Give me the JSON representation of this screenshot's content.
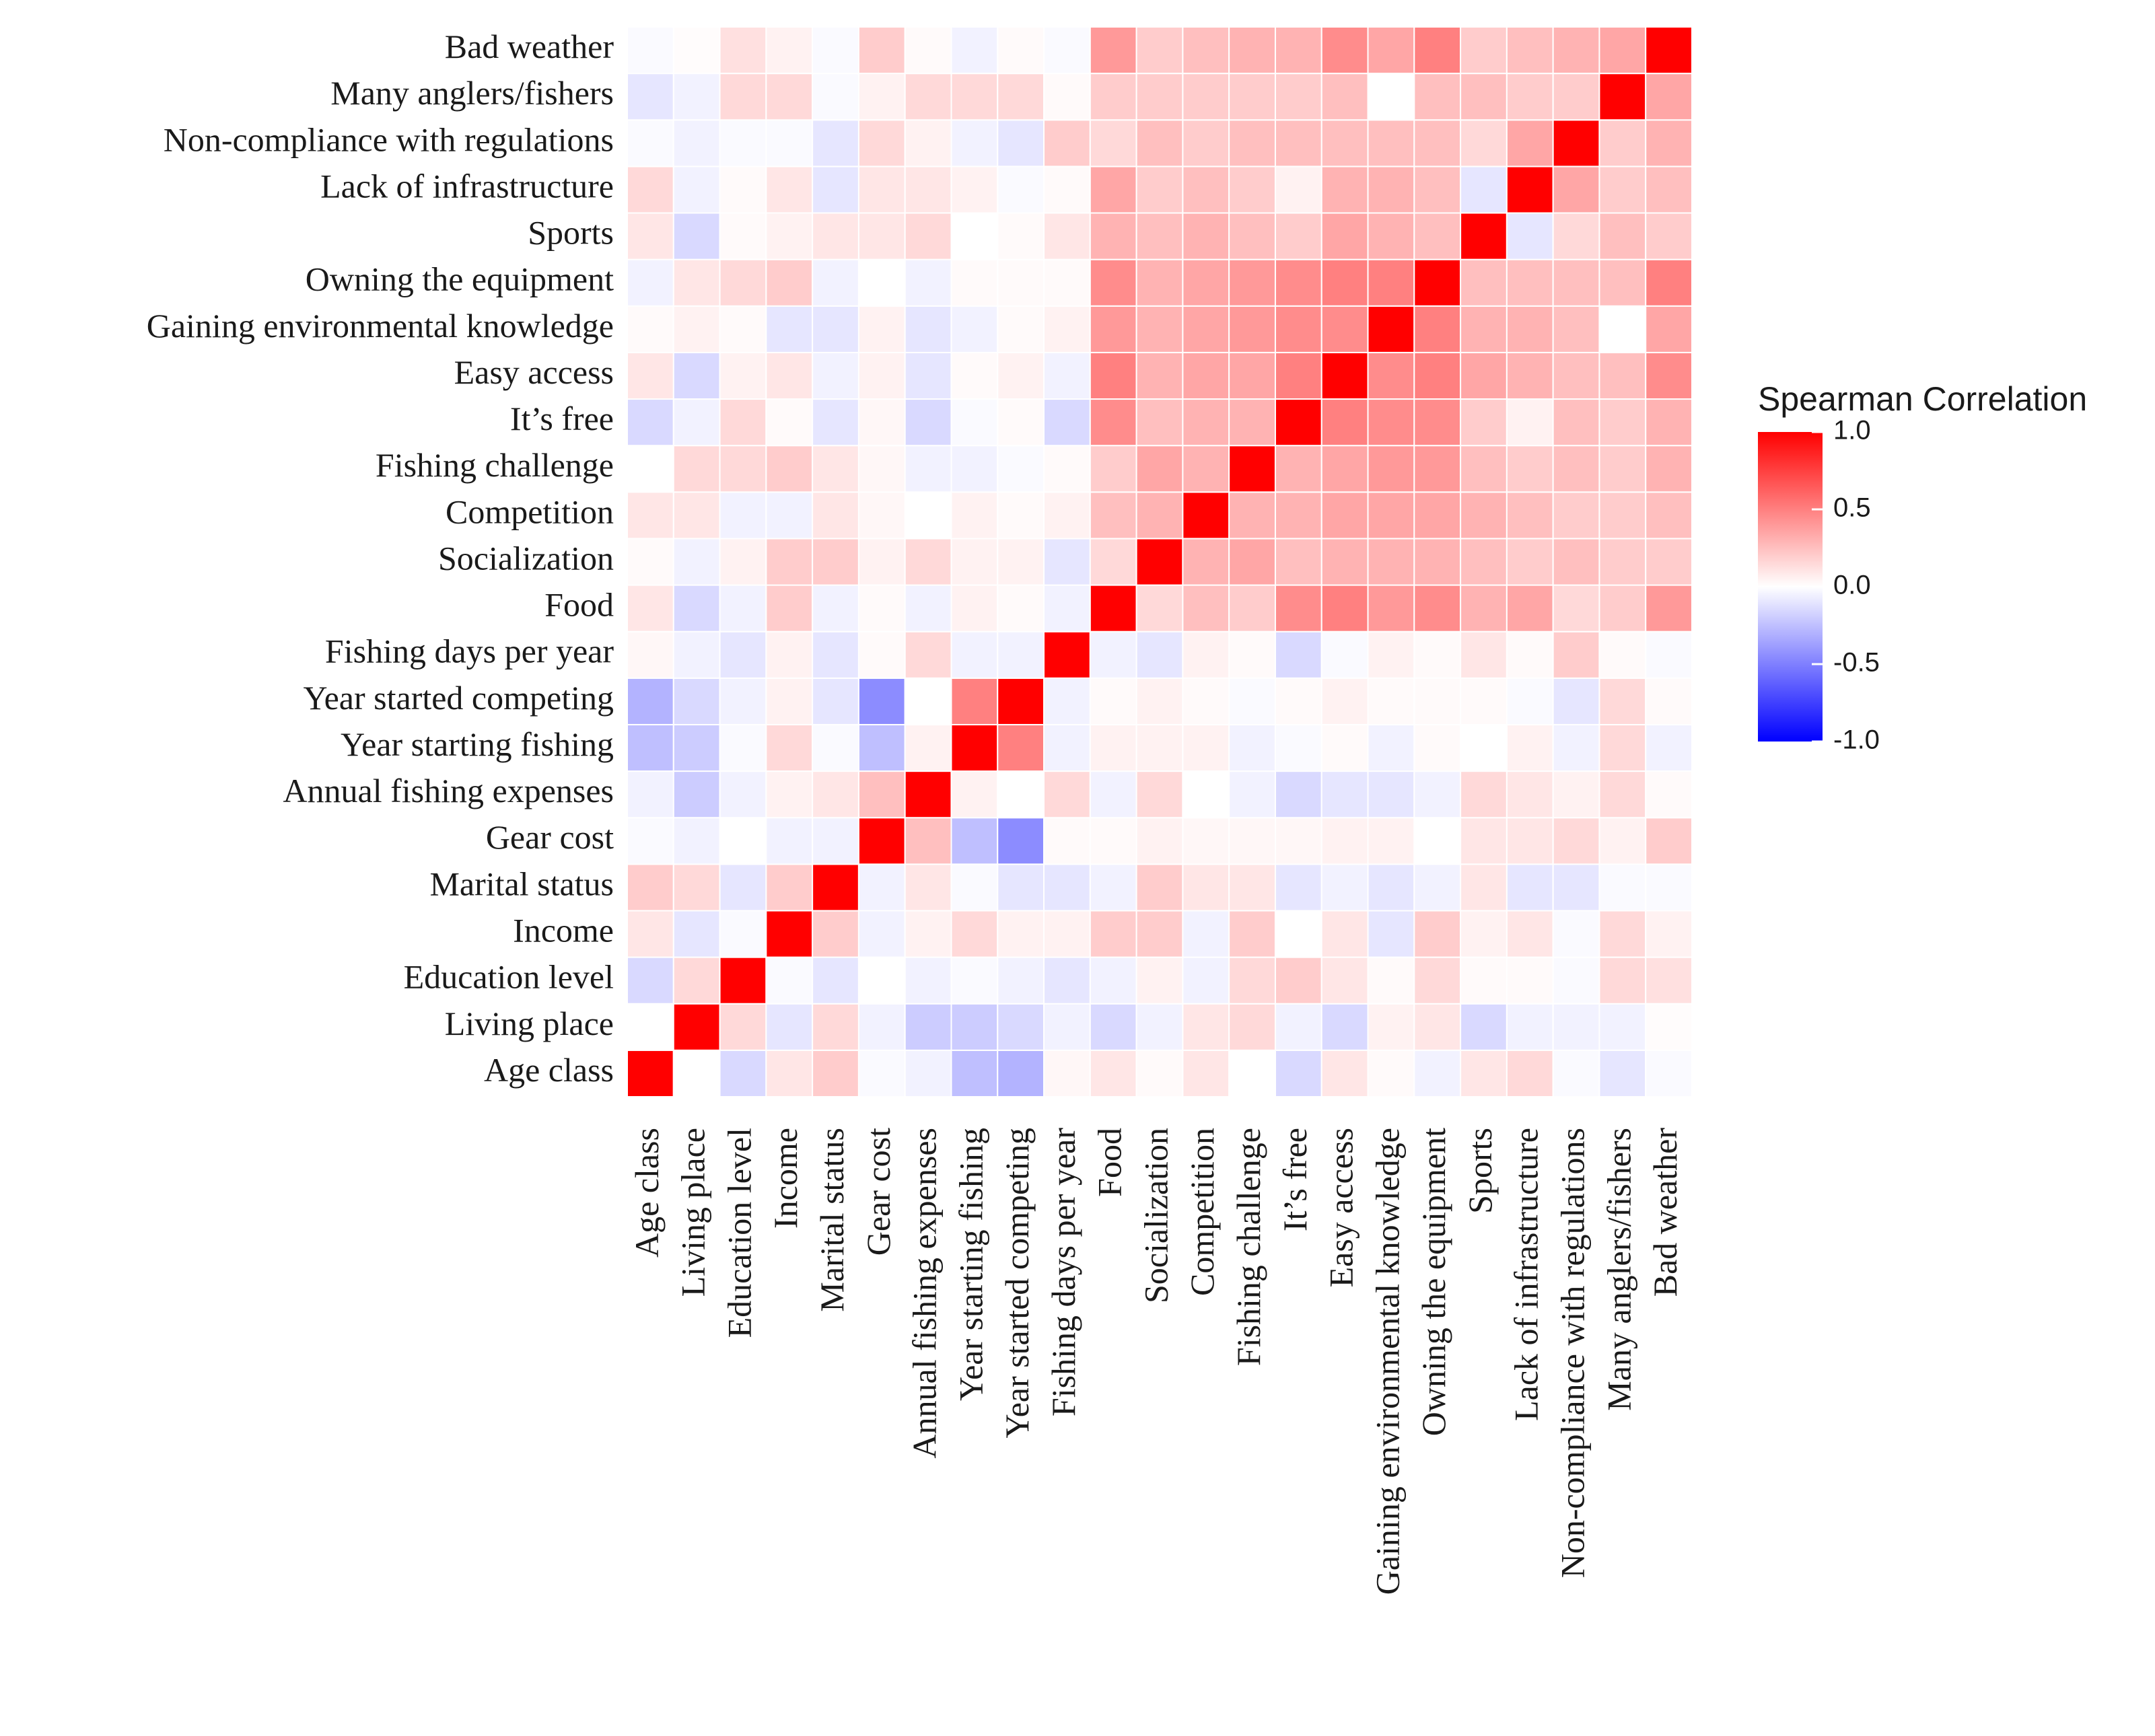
{
  "chart_data": {
    "type": "heatmap",
    "title": "",
    "xlabel": "",
    "ylabel": "",
    "variables": [
      "Age class",
      "Living place",
      "Education level",
      "Income",
      "Marital status",
      "Gear cost",
      "Annual fishing expenses",
      "Year starting fishing",
      "Year started competing",
      "Fishing days per year",
      "Food",
      "Socialization",
      "Competition",
      "Fishing challenge",
      "It’s free",
      "Easy access",
      "Gaining environmental knowledge",
      "Owning the equipment",
      "Sports",
      "Lack of infrastructure",
      "Non-compliance with regulations",
      "Many anglers/fishers",
      "Bad weather"
    ],
    "row_labels_display": [
      "Age class",
      "Living place",
      "Education level",
      "Income",
      "Marital status",
      "Gear cost",
      "Annual fishing expenses",
      "Year starting fishing",
      "Year started competing",
      "Fishing days per year",
      "Food",
      "Socialization ",
      "Competition",
      "Fishing challenge",
      "It’s free",
      "Easy access",
      "Gaining environmental knowledge",
      "Owning the equipment",
      "Sports",
      "Lack of infrastructure",
      "Non-compliance with regulations",
      "Many anglers/fishers",
      "Bad weather"
    ],
    "matrix": [
      [
        1.0,
        0.0,
        -0.15,
        0.1,
        0.2,
        -0.02,
        -0.05,
        -0.25,
        -0.3,
        0.03,
        0.1,
        0.02,
        0.1,
        0.0,
        -0.15,
        0.1,
        0.02,
        -0.05,
        0.1,
        0.15,
        -0.02,
        -0.1,
        -0.02
      ],
      [
        0.0,
        1.0,
        0.15,
        -0.1,
        0.15,
        -0.05,
        -0.2,
        -0.2,
        -0.15,
        -0.05,
        -0.15,
        -0.05,
        0.1,
        0.15,
        -0.05,
        -0.15,
        0.05,
        0.1,
        -0.15,
        -0.05,
        -0.05,
        -0.05,
        0.01
      ],
      [
        -0.15,
        0.15,
        1.0,
        -0.02,
        -0.1,
        0.0,
        -0.05,
        -0.02,
        -0.05,
        -0.1,
        -0.05,
        0.05,
        -0.05,
        0.15,
        0.2,
        0.1,
        0.02,
        0.15,
        0.02,
        0.02,
        -0.02,
        0.15,
        0.12
      ],
      [
        0.1,
        -0.1,
        -0.02,
        1.0,
        0.2,
        -0.05,
        0.05,
        0.15,
        0.05,
        0.05,
        0.2,
        0.2,
        -0.05,
        0.2,
        0.0,
        0.1,
        -0.1,
        0.2,
        0.05,
        0.1,
        -0.02,
        0.15,
        0.05
      ],
      [
        0.2,
        0.15,
        -0.1,
        0.2,
        1.0,
        -0.05,
        0.1,
        -0.02,
        -0.1,
        -0.1,
        -0.05,
        0.2,
        0.1,
        0.1,
        -0.1,
        -0.05,
        -0.1,
        -0.05,
        0.1,
        -0.1,
        -0.1,
        -0.02,
        -0.02
      ],
      [
        -0.02,
        -0.05,
        0.0,
        -0.05,
        -0.05,
        1.0,
        0.25,
        -0.25,
        -0.45,
        0.02,
        0.02,
        0.05,
        0.03,
        0.03,
        0.03,
        0.05,
        0.05,
        0.0,
        0.1,
        0.1,
        0.15,
        0.05,
        0.2
      ],
      [
        -0.05,
        -0.2,
        -0.05,
        0.05,
        0.1,
        0.25,
        1.0,
        0.05,
        0.0,
        0.15,
        -0.05,
        0.15,
        0.0,
        -0.05,
        -0.15,
        -0.1,
        -0.1,
        -0.05,
        0.15,
        0.1,
        0.05,
        0.15,
        0.02
      ],
      [
        -0.25,
        -0.2,
        -0.02,
        0.15,
        -0.02,
        -0.25,
        0.05,
        1.0,
        0.5,
        -0.05,
        0.05,
        0.05,
        0.05,
        -0.05,
        -0.02,
        0.02,
        -0.05,
        0.02,
        0.0,
        0.05,
        -0.05,
        0.15,
        -0.05
      ],
      [
        -0.3,
        -0.15,
        -0.05,
        0.05,
        -0.1,
        -0.45,
        0.0,
        0.5,
        1.0,
        -0.05,
        0.02,
        0.05,
        0.02,
        -0.02,
        0.02,
        0.05,
        0.02,
        0.02,
        0.02,
        -0.02,
        -0.1,
        0.15,
        0.02
      ],
      [
        0.03,
        -0.05,
        -0.1,
        0.05,
        -0.1,
        0.02,
        0.15,
        -0.05,
        -0.05,
        1.0,
        -0.05,
        -0.1,
        0.05,
        0.02,
        -0.15,
        -0.02,
        0.05,
        0.02,
        0.1,
        0.02,
        0.2,
        0.02,
        -0.02
      ],
      [
        0.1,
        -0.15,
        -0.05,
        0.2,
        -0.05,
        0.02,
        -0.05,
        0.05,
        0.02,
        -0.05,
        1.0,
        0.15,
        0.25,
        0.2,
        0.45,
        0.5,
        0.4,
        0.45,
        0.3,
        0.35,
        0.15,
        0.2,
        0.4
      ],
      [
        0.02,
        -0.05,
        0.05,
        0.2,
        0.2,
        0.05,
        0.15,
        0.05,
        0.05,
        -0.1,
        0.15,
        1.0,
        0.3,
        0.35,
        0.25,
        0.3,
        0.3,
        0.3,
        0.25,
        0.2,
        0.25,
        0.2,
        0.2
      ],
      [
        0.1,
        0.1,
        -0.05,
        -0.05,
        0.1,
        0.03,
        0.0,
        0.05,
        0.02,
        0.05,
        0.25,
        0.3,
        1.0,
        0.3,
        0.3,
        0.35,
        0.35,
        0.35,
        0.3,
        0.25,
        0.2,
        0.2,
        0.25
      ],
      [
        0.0,
        0.15,
        0.15,
        0.2,
        0.1,
        0.03,
        -0.05,
        -0.05,
        -0.02,
        0.02,
        0.2,
        0.35,
        0.3,
        1.0,
        0.3,
        0.35,
        0.4,
        0.4,
        0.25,
        0.2,
        0.25,
        0.2,
        0.3
      ],
      [
        -0.15,
        -0.05,
        0.15,
        0.02,
        -0.1,
        0.03,
        -0.15,
        -0.02,
        0.02,
        -0.15,
        0.45,
        0.25,
        0.3,
        0.3,
        1.0,
        0.5,
        0.45,
        0.45,
        0.2,
        0.05,
        0.25,
        0.2,
        0.3
      ],
      [
        0.1,
        -0.15,
        0.05,
        0.1,
        -0.05,
        0.05,
        -0.1,
        0.02,
        0.05,
        -0.05,
        0.5,
        0.3,
        0.35,
        0.35,
        0.5,
        1.0,
        0.45,
        0.5,
        0.35,
        0.3,
        0.25,
        0.25,
        0.45
      ],
      [
        0.02,
        0.05,
        0.02,
        -0.1,
        -0.1,
        0.05,
        -0.1,
        -0.05,
        0.02,
        0.05,
        0.4,
        0.3,
        0.35,
        0.4,
        0.45,
        0.45,
        1.0,
        0.5,
        0.3,
        0.3,
        0.25,
        0.0,
        0.35
      ],
      [
        -0.05,
        0.1,
        0.15,
        0.2,
        -0.05,
        0.0,
        -0.05,
        0.02,
        0.02,
        0.02,
        0.45,
        0.3,
        0.35,
        0.4,
        0.45,
        0.5,
        0.5,
        1.0,
        0.25,
        0.25,
        0.25,
        0.25,
        0.5
      ],
      [
        0.1,
        -0.15,
        0.02,
        0.05,
        0.1,
        0.1,
        0.15,
        0.0,
        0.02,
        0.1,
        0.3,
        0.25,
        0.3,
        0.25,
        0.2,
        0.35,
        0.3,
        0.25,
        1.0,
        -0.1,
        0.15,
        0.25,
        0.2
      ],
      [
        0.15,
        -0.05,
        0.02,
        0.1,
        -0.1,
        0.1,
        0.1,
        0.05,
        -0.02,
        0.02,
        0.35,
        0.2,
        0.25,
        0.2,
        0.05,
        0.3,
        0.3,
        0.25,
        -0.1,
        1.0,
        0.35,
        0.2,
        0.25
      ],
      [
        -0.02,
        -0.05,
        -0.02,
        -0.02,
        -0.1,
        0.15,
        0.05,
        -0.05,
        -0.1,
        0.2,
        0.15,
        0.25,
        0.2,
        0.25,
        0.25,
        0.25,
        0.25,
        0.25,
        0.15,
        0.35,
        1.0,
        0.2,
        0.3
      ],
      [
        -0.1,
        -0.05,
        0.15,
        0.15,
        -0.02,
        0.05,
        0.15,
        0.15,
        0.15,
        0.02,
        0.2,
        0.2,
        0.2,
        0.2,
        0.2,
        0.25,
        0.0,
        0.25,
        0.25,
        0.2,
        0.2,
        1.0,
        0.35
      ],
      [
        -0.02,
        0.01,
        0.12,
        0.05,
        -0.02,
        0.2,
        0.02,
        -0.05,
        0.02,
        -0.02,
        0.4,
        0.2,
        0.25,
        0.3,
        0.3,
        0.45,
        0.35,
        0.5,
        0.2,
        0.25,
        0.3,
        0.35,
        1.0
      ]
    ],
    "value_range": [
      -1.0,
      1.0
    ],
    "legend": {
      "title": "Spearman Correlation",
      "ticks": [
        1.0,
        0.5,
        0.0,
        -0.5,
        -1.0
      ],
      "tick_labels": [
        "1.0",
        "0.5",
        "0.0",
        "-0.5",
        "-1.0"
      ],
      "placement": "right"
    },
    "colors": {
      "low": "#0000ff",
      "mid": "#ffffff",
      "high": "#ff0000",
      "background": "#ffffff",
      "grid": "#ffffff",
      "panel": "#f5f5f5"
    }
  }
}
